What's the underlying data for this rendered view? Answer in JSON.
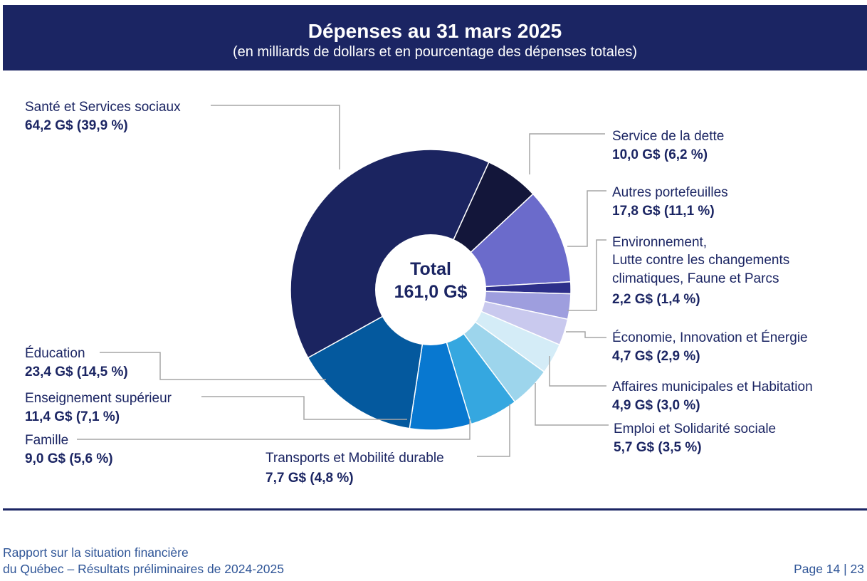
{
  "header": {
    "title": "Dépenses au 31 mars 2025",
    "subtitle": "(en milliards de dollars et en pourcentage des dépenses totales)"
  },
  "chart_data": {
    "type": "pie",
    "style": "donut",
    "center_label": [
      "Total",
      "161,0 G$"
    ],
    "total": 161.0,
    "unit": "G$",
    "slices": [
      {
        "label": "Santé et Services sociaux",
        "value": 64.2,
        "percent": 39.9,
        "value_text": "64,2 G$ (39,9 %)",
        "color": "#1b2460"
      },
      {
        "label": "Service de la dette",
        "value": 10.0,
        "percent": 6.2,
        "value_text": "10,0 G$ (6,2 %)",
        "color": "#13163a"
      },
      {
        "label": "Autres portefeuilles",
        "value": 17.8,
        "percent": 11.1,
        "value_text": "17,8 G$ (11,1 %)",
        "color": "#6b6bcb"
      },
      {
        "label": "Environnement, Lutte contre les changements climatiques, Faune et Parcs",
        "value": 2.2,
        "percent": 1.4,
        "value_text": "2,2 G$ (1,4 %)",
        "color": "#2d2f8a"
      },
      {
        "label": "Économie, Innovation et Énergie",
        "value": 4.7,
        "percent": 2.9,
        "value_text": "4,7 G$ (2,9 %)",
        "color": "#9e9ede"
      },
      {
        "label": "Affaires municipales et Habitation",
        "value": 4.9,
        "percent": 3.0,
        "value_text": "4,9 G$ (3,0 %)",
        "color": "#c9c9ee"
      },
      {
        "label": "Emploi et Solidarité sociale",
        "value": 5.7,
        "percent": 3.5,
        "value_text": "5,7 G$ (3,5 %)",
        "color": "#d4ecf7"
      },
      {
        "label": "Transports et Mobilité durable",
        "value": 7.7,
        "percent": 4.8,
        "value_text": "7,7 G$ (4,8 %)",
        "color": "#9dd5ec"
      },
      {
        "label": "Famille",
        "value": 9.0,
        "percent": 5.6,
        "value_text": "9,0 G$ (5,6 %)",
        "color": "#35a7e0"
      },
      {
        "label": "Enseignement supérieur",
        "value": 11.4,
        "percent": 7.1,
        "value_text": "11,4 G$ (7,1 %)",
        "color": "#0878d0"
      },
      {
        "label": "Éducation",
        "value": 23.4,
        "percent": 14.5,
        "value_text": "23,4 G$ (14,5 %)",
        "color": "#04599e"
      }
    ]
  },
  "footer": {
    "report_line1": "Rapport sur la situation financière",
    "report_line2": "du Québec – Résultats préliminaires de 2024-2025",
    "page": "Page 14 | 23"
  }
}
